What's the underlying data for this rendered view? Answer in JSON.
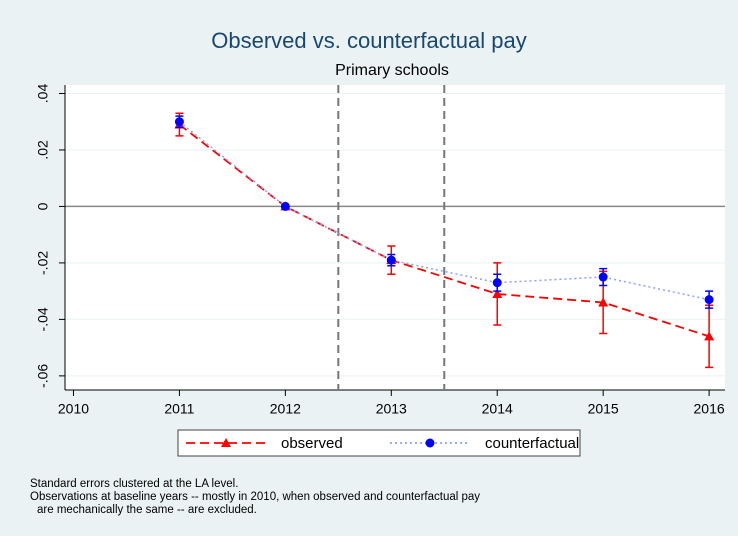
{
  "chart_data": {
    "type": "line",
    "title": "Observed vs. counterfactual pay",
    "subtitle": "Primary schools",
    "x": [
      2011,
      2012,
      2013,
      2014,
      2015,
      2016
    ],
    "series": [
      {
        "name": "observed",
        "color": "#ff0000",
        "line_style": "dashed",
        "marker": "triangle",
        "values": [
          0.029,
          0,
          -0.019,
          -0.031,
          -0.034,
          -0.046
        ],
        "errors": [
          0.004,
          0,
          0.005,
          0.011,
          0.011,
          0.011
        ]
      },
      {
        "name": "counterfactual",
        "color": "#0000ff",
        "line_style": "dotted",
        "marker": "circle",
        "values": [
          0.03,
          0,
          -0.019,
          -0.027,
          -0.025,
          -0.033
        ],
        "errors": [
          0.002,
          0,
          0.002,
          0.003,
          0.003,
          0.003
        ]
      }
    ],
    "xlim": [
      2009.92,
      2016.15
    ],
    "xticks": [
      2010,
      2011,
      2012,
      2013,
      2014,
      2015,
      2016
    ],
    "ylim": [
      -0.065,
      0.043
    ],
    "yticks": [
      {
        "value": 0.04,
        "label": ".04"
      },
      {
        "value": 0.02,
        "label": ".02"
      },
      0,
      {
        "value": -0.02,
        "label": "-.02"
      },
      {
        "value": -0.04,
        "label": "-.04"
      },
      {
        "value": -0.06,
        "label": "-.06"
      }
    ],
    "reference_lines": [
      2012.5,
      2013.5
    ],
    "grid": true,
    "legend": "bottom",
    "notes": [
      "Standard errors clustered at the LA level.",
      "Observations at baseline years -- mostly in 2010, when observed and counterfactual pay",
      "are mechanically the same -- are excluded."
    ]
  }
}
